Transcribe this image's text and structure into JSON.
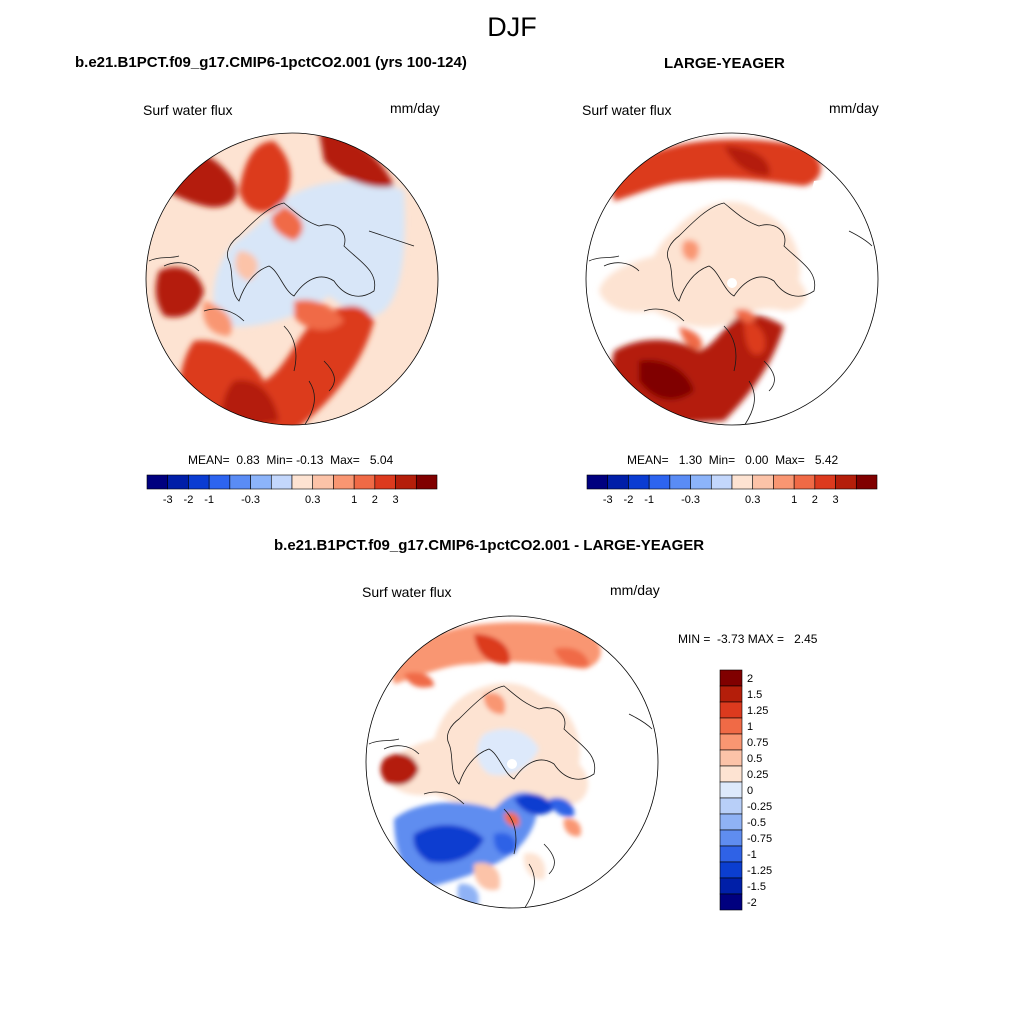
{
  "figure": {
    "season": "DJF"
  },
  "panels": [
    {
      "title": "b.e21.B1PCT.f09_g17.CMIP6-1pctCO2.001 (yrs 100-124)",
      "variable": "Surf water flux",
      "units": "mm/day",
      "stats": {
        "mean_label": "MEAN=",
        "mean": "0.83",
        "min_label": "Min=",
        "min": "-0.13",
        "max_label": "Max=",
        "max": "5.04"
      }
    },
    {
      "title": "LARGE-YEAGER",
      "variable": "Surf water flux",
      "units": "mm/day",
      "stats": {
        "mean_label": "MEAN=",
        "mean": "1.30",
        "min_label": "Min=",
        "min": "0.00",
        "max_label": "Max=",
        "max": "5.42"
      }
    },
    {
      "title": "b.e21.B1PCT.f09_g17.CMIP6-1pctCO2.001 - LARGE-YEAGER",
      "variable": "Surf water flux",
      "units": "mm/day",
      "stats": {
        "min_label": "MIN =",
        "min": "-3.73",
        "max_label": "MAX =",
        "max": "2.45"
      }
    }
  ],
  "colorbar_horizontal": {
    "colors": [
      "#00007f",
      "#001ea8",
      "#0a3cd2",
      "#2d64f0",
      "#5a8cf5",
      "#8cb4fa",
      "#c3d7fc",
      "#fde3d2",
      "#fcc3a8",
      "#f99672",
      "#f06a46",
      "#dc3a1e",
      "#b41e0a",
      "#800000"
    ],
    "labels": [
      "-3",
      "-2",
      "-1",
      "-0.3",
      "0.3",
      "1",
      "2",
      "3"
    ]
  },
  "colorbar_vertical": {
    "colors": [
      "#800000",
      "#b41e0a",
      "#dc3a1e",
      "#f06a46",
      "#f99672",
      "#fcc3a8",
      "#fde3d2",
      "#dde9fb",
      "#b8cff8",
      "#8fb2f5",
      "#5f8df0",
      "#2f62e6",
      "#0b3ed0",
      "#001fa8",
      "#00007f"
    ],
    "labels": [
      "2",
      "1.5",
      "1.25",
      "1",
      "0.75",
      "0.5",
      "0.25",
      "0",
      "-0.25",
      "-0.5",
      "-0.75",
      "-1",
      "-1.25",
      "-1.5",
      "-2"
    ]
  }
}
